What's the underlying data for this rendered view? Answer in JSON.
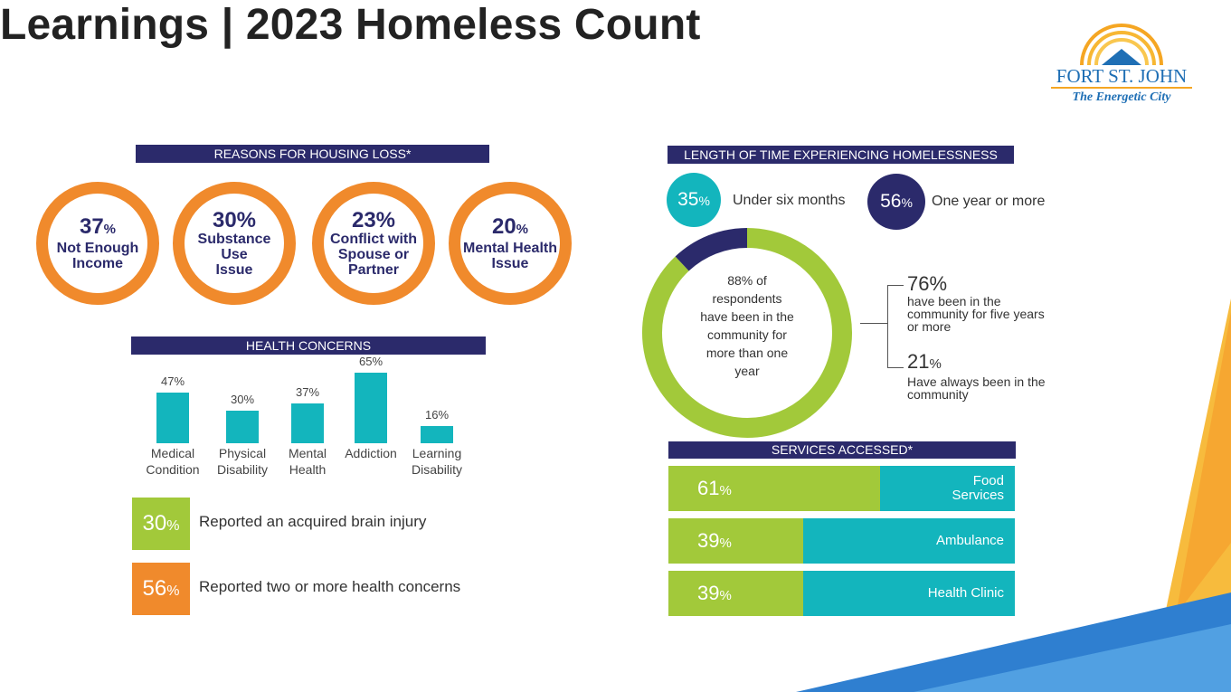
{
  "title": "Learnings | 2023 Homeless Count",
  "logo": {
    "city": "FORT ST. JOHN",
    "tagline": "The Energetic City"
  },
  "colors": {
    "navy": "#2b2a6b",
    "orange": "#f08a2c",
    "teal": "#13b5bd",
    "green": "#a2c93a"
  },
  "chart_data": [
    {
      "type": "bar",
      "title": "REASONS FOR HOUSING LOSS*",
      "values": [
        {
          "value": "37",
          "unit": "%",
          "label_lines": [
            "Not Enough",
            "Income"
          ]
        },
        {
          "value": "30%",
          "unit": "",
          "label_lines": [
            "Substance Use",
            "Issue"
          ]
        },
        {
          "value": "23%",
          "unit": "",
          "label_lines": [
            "Conflict with",
            "Spouse or",
            "Partner"
          ]
        },
        {
          "value": "20",
          "unit": "%",
          "label_lines": [
            "Mental Health",
            "Issue"
          ]
        }
      ]
    },
    {
      "type": "bar",
      "title": "HEALTH CONCERNS",
      "categories": [
        [
          "Medical",
          "Condition"
        ],
        [
          "Physical",
          "Disability"
        ],
        [
          "Mental",
          "Health"
        ],
        [
          "Addiction"
        ],
        [
          "Learning",
          "Disability"
        ]
      ],
      "values": [
        47,
        30,
        37,
        65,
        16
      ],
      "value_labels": [
        "47%",
        "30%",
        "37%",
        "65%",
        "16%"
      ],
      "ylim": [
        0,
        100
      ]
    },
    {
      "type": "pie",
      "title": "LENGTH OF TIME EXPERIENCING HOMELESSNESS",
      "legend": [
        {
          "value": "35",
          "unit": "%",
          "label": "Under six months"
        },
        {
          "value": "56",
          "unit": "%",
          "label": "One year or more"
        }
      ],
      "donut_values": [
        88,
        12
      ],
      "center_lines": [
        "88% of",
        "respondents",
        "have been in the",
        "community for",
        "more than one",
        "year"
      ],
      "callouts": [
        {
          "value": "76%",
          "unit": "",
          "lines": [
            "have been in the",
            "community for five years",
            "or more"
          ]
        },
        {
          "value": "21",
          "unit": "%",
          "lines": [
            "Have always been in the",
            "community"
          ]
        }
      ]
    },
    {
      "type": "bar",
      "title": "SERVICES ACCESSED*",
      "rows": [
        {
          "value": 61,
          "pct": "61",
          "unit": "%",
          "label_lines": [
            "Food",
            "Services"
          ]
        },
        {
          "value": 39,
          "pct": "39",
          "unit": "%",
          "label_lines": [
            "Ambulance"
          ]
        },
        {
          "value": 39,
          "pct": "39",
          "unit": "%",
          "label_lines": [
            "Health Clinic"
          ]
        }
      ],
      "xlim": [
        0,
        100
      ]
    }
  ],
  "stat_boxes": [
    {
      "value": "30",
      "unit": "%",
      "text": "Reported an acquired brain injury",
      "color": "#a2c93a"
    },
    {
      "value": "56",
      "unit": "%",
      "text": "Reported two or more health concerns",
      "color": "#f08a2c"
    }
  ]
}
